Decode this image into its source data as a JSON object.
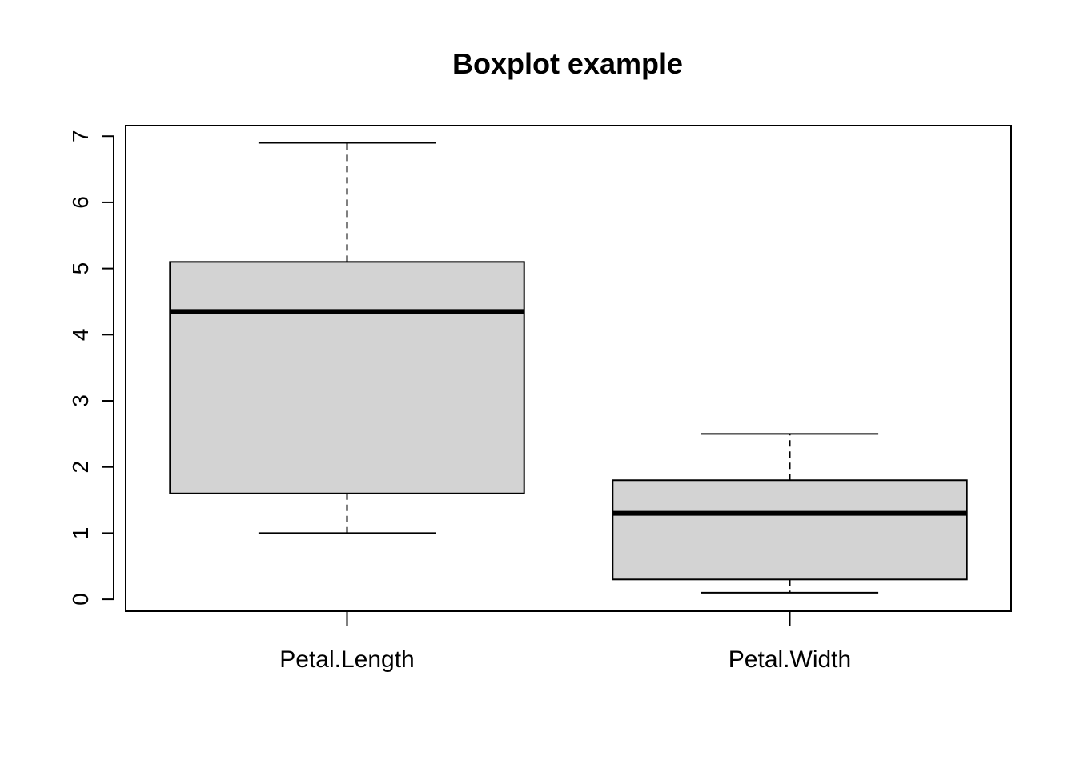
{
  "chart_data": {
    "type": "boxplot",
    "title": "Boxplot example",
    "xlabel": "",
    "ylabel": "",
    "ylim": [
      -0.18,
      7.16
    ],
    "yticks": [
      0,
      1,
      2,
      3,
      4,
      5,
      6,
      7
    ],
    "grid": false,
    "colors": {
      "box_fill": "#d3d3d3",
      "stroke": "#000000",
      "background": "#ffffff"
    },
    "categories": [
      "Petal.Length",
      "Petal.Width"
    ],
    "boxes": [
      {
        "name": "Petal.Length",
        "min": 1.0,
        "q1": 1.6,
        "median": 4.35,
        "q3": 5.1,
        "max": 6.9
      },
      {
        "name": "Petal.Width",
        "min": 0.1,
        "q1": 0.3,
        "median": 1.3,
        "q3": 1.8,
        "max": 2.5
      }
    ]
  }
}
